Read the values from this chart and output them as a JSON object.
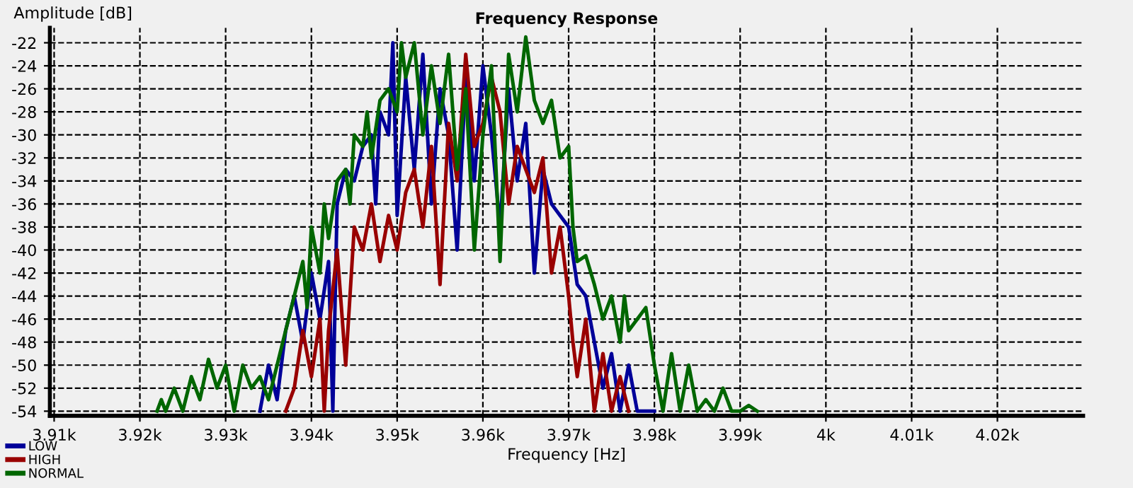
{
  "chart_data": {
    "type": "line",
    "title": "Frequency Response",
    "xlabel": "Frequency [Hz]",
    "ylabel": "Amplitude [dB]",
    "xlim": [
      3909.5,
      4030
    ],
    "ylim": [
      -54.4,
      -20.7
    ],
    "xticks": [
      {
        "value": 3910,
        "label": "3.91k"
      },
      {
        "value": 3920,
        "label": "3.92k"
      },
      {
        "value": 3930,
        "label": "3.93k"
      },
      {
        "value": 3940,
        "label": "3.94k"
      },
      {
        "value": 3950,
        "label": "3.95k"
      },
      {
        "value": 3960,
        "label": "3.96k"
      },
      {
        "value": 3970,
        "label": "3.97k"
      },
      {
        "value": 3980,
        "label": "3.98k"
      },
      {
        "value": 3990,
        "label": "3.99k"
      },
      {
        "value": 4000,
        "label": "4k"
      },
      {
        "value": 4010,
        "label": "4.01k"
      },
      {
        "value": 4020,
        "label": "4.02k"
      }
    ],
    "yticks": [
      -22,
      -24,
      -26,
      -28,
      -30,
      -32,
      -34,
      -36,
      -38,
      -40,
      -42,
      -44,
      -46,
      -48,
      -50,
      -52,
      -54
    ],
    "grid": true,
    "legend": "bottom left",
    "line_style": "solid",
    "series": [
      {
        "name": "LOW",
        "color": "#000099",
        "x": [
          3934,
          3935,
          3936,
          3937,
          3938,
          3939,
          3940,
          3941,
          3942,
          3942.5,
          3943,
          3944,
          3945,
          3946,
          3947,
          3947.5,
          3948,
          3949,
          3949.5,
          3950,
          3951,
          3952,
          3953,
          3954,
          3955,
          3956,
          3957,
          3958,
          3959,
          3960,
          3961,
          3962,
          3963,
          3964,
          3965,
          3966,
          3967,
          3968,
          3969,
          3970,
          3971,
          3972,
          3973,
          3974,
          3975,
          3976,
          3977,
          3978,
          3980
        ],
        "values": [
          -54,
          -50,
          -53,
          -47,
          -44,
          -48,
          -42,
          -46,
          -41,
          -54,
          -36,
          -33,
          -34,
          -31,
          -30,
          -36,
          -28,
          -30,
          -22,
          -37,
          -25,
          -33,
          -23,
          -36,
          -26,
          -30,
          -40,
          -25,
          -34,
          -24,
          -30,
          -38,
          -26,
          -34,
          -29,
          -42,
          -33,
          -36,
          -37,
          -38,
          -43,
          -44,
          -48,
          -52,
          -49,
          -54,
          -50,
          -54,
          -54
        ]
      },
      {
        "name": "HIGH",
        "color": "#990000",
        "x": [
          3937,
          3938,
          3939,
          3940,
          3941,
          3941.5,
          3942,
          3943,
          3944,
          3945,
          3946,
          3947,
          3948,
          3949,
          3950,
          3951,
          3952,
          3953,
          3954,
          3955,
          3956,
          3957,
          3958,
          3959,
          3960,
          3961,
          3962,
          3963,
          3964,
          3965,
          3966,
          3967,
          3968,
          3969,
          3970,
          3970.5,
          3971,
          3972,
          3973,
          3974,
          3975,
          3976,
          3977
        ],
        "values": [
          -54,
          -52,
          -47,
          -51,
          -46,
          -54,
          -47,
          -40,
          -50,
          -38,
          -40,
          -36,
          -41,
          -37,
          -40,
          -35,
          -33,
          -38,
          -31,
          -43,
          -29,
          -34,
          -23,
          -31,
          -29,
          -25,
          -28,
          -36,
          -31,
          -33,
          -35,
          -32,
          -42,
          -38,
          -44,
          -48,
          -51,
          -46,
          -54,
          -49,
          -54,
          -51,
          -54
        ]
      },
      {
        "name": "NORMAL",
        "color": "#006600",
        "x": [
          3922,
          3922.5,
          3923,
          3924,
          3925,
          3926,
          3927,
          3928,
          3929,
          3930,
          3931,
          3932,
          3933,
          3934,
          3935,
          3936,
          3937,
          3938,
          3939,
          3939.5,
          3940,
          3941,
          3941.5,
          3942,
          3943,
          3944,
          3944.5,
          3945,
          3946,
          3946.5,
          3947,
          3948,
          3949,
          3950,
          3950.5,
          3951,
          3952,
          3953,
          3954,
          3955,
          3956,
          3957,
          3958,
          3959,
          3960,
          3961,
          3962,
          3963,
          3964,
          3965,
          3966,
          3967,
          3968,
          3969,
          3970,
          3970.5,
          3971,
          3972,
          3973,
          3974,
          3975,
          3976,
          3976.5,
          3977,
          3978,
          3979,
          3980,
          3981,
          3982,
          3983,
          3984,
          3985,
          3986,
          3987,
          3988,
          3989,
          3990,
          3991,
          3992
        ],
        "values": [
          -54,
          -53,
          -54,
          -52,
          -54,
          -51,
          -53,
          -49.5,
          -52,
          -50,
          -54,
          -50,
          -52,
          -51,
          -53,
          -50,
          -47,
          -44,
          -41,
          -45,
          -38,
          -42,
          -36,
          -39,
          -34,
          -33,
          -36,
          -30,
          -31,
          -28,
          -32,
          -27,
          -26,
          -28,
          -22,
          -25,
          -22,
          -30,
          -24,
          -29,
          -23,
          -33,
          -26,
          -40,
          -30,
          -24,
          -41,
          -23,
          -28,
          -21.5,
          -27,
          -29,
          -27,
          -32,
          -31,
          -38,
          -41,
          -40.5,
          -43,
          -46,
          -44,
          -48,
          -44,
          -47,
          -46,
          -45,
          -50,
          -54,
          -49,
          -54,
          -50,
          -54,
          -53,
          -54,
          -52,
          -54,
          -54,
          -53.5,
          -54
        ]
      }
    ]
  }
}
